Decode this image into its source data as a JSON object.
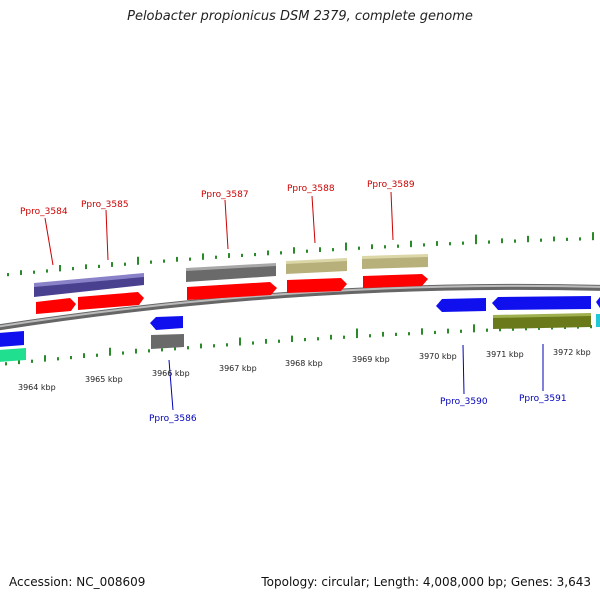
{
  "title": "Pelobacter propionicus DSM 2379, complete genome",
  "footer": {
    "accession": "Accession: NC_008609",
    "summary": "Topology: circular; Length: 4,008,000 bp; Genes: 3,643"
  },
  "colors": {
    "backbone": "#8a8a8a",
    "gc_marks": "#2a8a2a",
    "forward_label": "#cc0000",
    "reverse_label": "#0000bb"
  },
  "scale_ticks": [
    "3964 kbp",
    "3965 kbp",
    "3966 kbp",
    "3967 kbp",
    "3968 kbp",
    "3969 kbp",
    "3970 kbp",
    "3971 kbp",
    "3972 kbp"
  ],
  "forward_gene_labels": [
    "Ppro_3584",
    "Ppro_3585",
    "Ppro_3587",
    "Ppro_3588",
    "Ppro_3589"
  ],
  "reverse_gene_labels": [
    "Ppro_3586",
    "Ppro_3590",
    "Ppro_3591"
  ]
}
